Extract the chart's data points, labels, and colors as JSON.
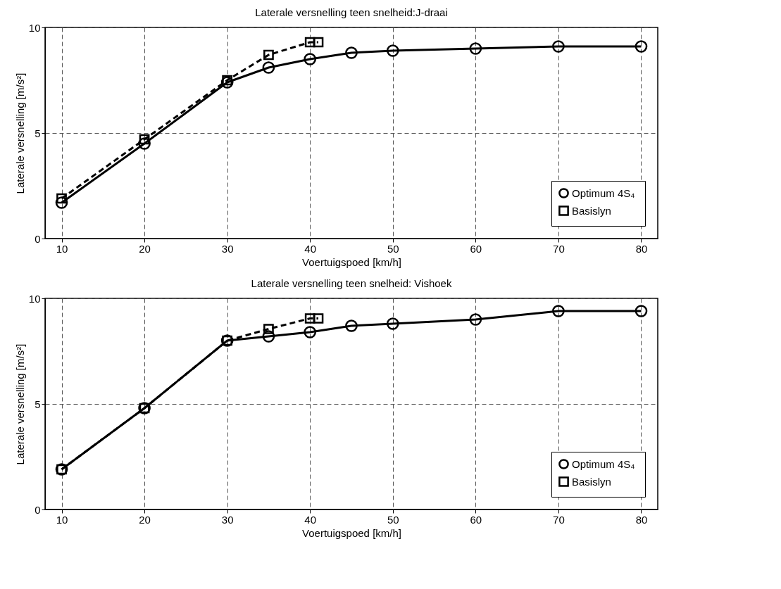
{
  "chart_data": [
    {
      "type": "line",
      "title": "Laterale versnelling teen snelheid:J-draai",
      "xlabel": "Voertuigspoed [km/h]",
      "ylabel": "Laterale versnelling [m/s²]",
      "xlim": [
        8,
        82
      ],
      "xticks": [
        10,
        20,
        30,
        40,
        50,
        60,
        70,
        80
      ],
      "ylim": [
        0,
        10
      ],
      "yticks": [
        0,
        5,
        10
      ],
      "grid": true,
      "legend": "bottom right",
      "series": [
        {
          "name": "Optimum  4S₄",
          "color": "#000000",
          "marker": "circle",
          "line_style": "solid",
          "x": [
            10,
            20,
            30,
            35,
            40,
            45,
            50,
            60,
            70,
            80
          ],
          "values": [
            1.7,
            4.5,
            7.4,
            8.1,
            8.5,
            8.8,
            8.9,
            9.0,
            9.1,
            9.1
          ]
        },
        {
          "name": "Basislyn",
          "color": "#000000",
          "marker": "square",
          "line_style": "dashed",
          "x": [
            10,
            20,
            30,
            35,
            40,
            41
          ],
          "values": [
            1.9,
            4.7,
            7.5,
            8.7,
            9.3,
            9.3
          ]
        }
      ]
    },
    {
      "type": "line",
      "title": "Laterale versnelling teen snelheid: Vishoek",
      "xlabel": "Voertuigspoed [km/h]",
      "ylabel": "Laterale versnelling [m/s²]",
      "xlim": [
        8,
        82
      ],
      "xticks": [
        10,
        20,
        30,
        40,
        50,
        60,
        70,
        80
      ],
      "ylim": [
        0,
        10
      ],
      "yticks": [
        0,
        5,
        10
      ],
      "grid": true,
      "legend": "bottom right",
      "series": [
        {
          "name": "Optimum  4S₄",
          "color": "#000000",
          "marker": "circle",
          "line_style": "solid",
          "x": [
            10,
            20,
            30,
            35,
            40,
            45,
            50,
            60,
            70,
            80
          ],
          "values": [
            1.9,
            4.8,
            8.0,
            8.2,
            8.4,
            8.7,
            8.8,
            9.0,
            9.4,
            9.4
          ]
        },
        {
          "name": "Basislyn",
          "color": "#000000",
          "marker": "square",
          "line_style": "dashed",
          "x": [
            10,
            20,
            30,
            35,
            40,
            41
          ],
          "values": [
            1.9,
            4.8,
            8.0,
            8.55,
            9.05,
            9.05
          ]
        }
      ]
    }
  ]
}
